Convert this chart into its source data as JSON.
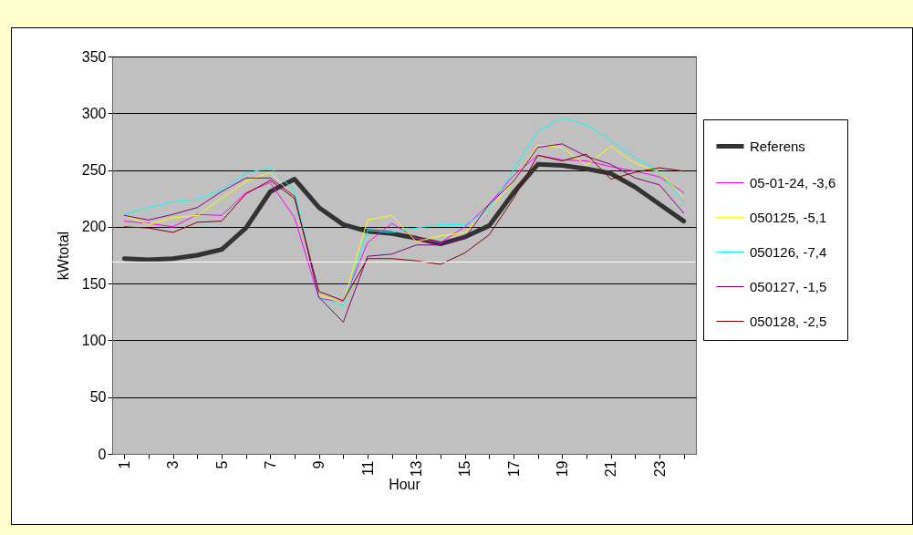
{
  "chart_data": {
    "type": "line",
    "xlabel": "Hour",
    "ylabel": "kWtotal",
    "categories": [
      "1",
      null,
      "3",
      null,
      "5",
      null,
      "7",
      null,
      "9",
      null,
      "11",
      null,
      "13",
      null,
      "15",
      null,
      "17",
      null,
      "19",
      null,
      "21",
      null,
      "23",
      null
    ],
    "ylim": [
      0,
      350
    ],
    "yticks": [
      0,
      50,
      100,
      150,
      200,
      250,
      300,
      350
    ],
    "grid": "y",
    "legend": "right",
    "marker": "none",
    "line_style": "solid",
    "ref_lines": [
      {
        "axis": "y",
        "value": 169,
        "color": "#ffffff"
      }
    ],
    "series": [
      {
        "name": "Referens",
        "color": "#333333",
        "values": [
          172,
          171,
          172,
          175,
          180,
          199,
          231,
          242,
          217,
          202,
          196,
          194,
          190,
          185,
          191,
          201,
          230,
          255,
          254,
          251,
          247,
          235,
          220,
          205
        ]
      },
      {
        "name": "05-01-24, -3,6",
        "color": "#ff00ff",
        "values": [
          205,
          203,
          200,
          211,
          210,
          230,
          239,
          208,
          137,
          134,
          186,
          203,
          190,
          186,
          200,
          220,
          245,
          263,
          259,
          258,
          253,
          249,
          244,
          230
        ]
      },
      {
        "name": "050125, -5,1",
        "color": "#ffff00",
        "values": [
          210,
          202,
          208,
          210,
          225,
          240,
          248,
          226,
          140,
          133,
          206,
          210,
          187,
          192,
          195,
          215,
          240,
          272,
          270,
          254,
          271,
          256,
          248,
          226
        ]
      },
      {
        "name": "050126, -7,4",
        "color": "#00ffff",
        "values": [
          211,
          217,
          222,
          224,
          233,
          247,
          252,
          232,
          137,
          131,
          197,
          195,
          199,
          202,
          202,
          215,
          250,
          284,
          296,
          290,
          276,
          261,
          248,
          222
        ]
      },
      {
        "name": "050127, -1,5",
        "color": "#800080",
        "values": [
          210,
          206,
          211,
          217,
          231,
          243,
          243,
          227,
          138,
          116,
          174,
          176,
          184,
          184,
          190,
          220,
          240,
          270,
          273,
          262,
          255,
          243,
          237,
          212
        ]
      },
      {
        "name": "050128, -2,5",
        "color": "#800000",
        "values": [
          200,
          199,
          195,
          204,
          205,
          229,
          241,
          225,
          143,
          135,
          172,
          172,
          170,
          167,
          177,
          193,
          225,
          263,
          258,
          264,
          242,
          248,
          252,
          249
        ]
      }
    ]
  }
}
